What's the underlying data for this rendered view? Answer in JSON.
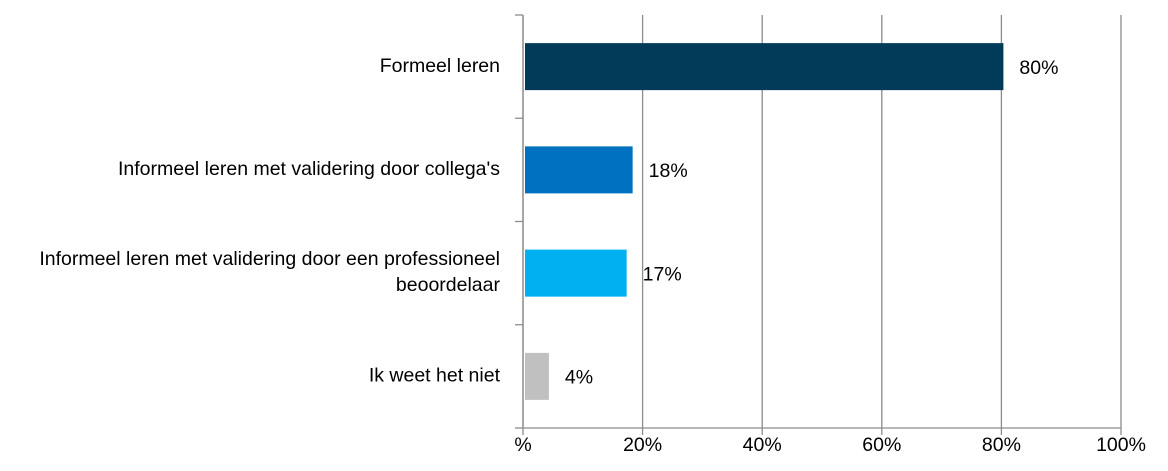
{
  "chart_data": {
    "type": "barh",
    "categories": [
      "Formeel leren",
      "Informeel leren met validering door collega's",
      "Informeel leren met validering door een professioneel beoordelaar",
      "Ik weet het niet"
    ],
    "values": [
      80,
      18,
      17,
      4
    ],
    "value_labels": [
      "80%",
      "18%",
      "17%",
      "4%"
    ],
    "colors": [
      "#023b5a",
      "#0070c0",
      "#00b0f0",
      "#c0c0c0"
    ],
    "xlim": [
      0,
      100
    ],
    "xticks": [
      {
        "value": 0,
        "label": "%"
      },
      {
        "value": 20,
        "label": "20%"
      },
      {
        "value": 40,
        "label": "40%"
      },
      {
        "value": 60,
        "label": "60%"
      },
      {
        "value": 80,
        "label": "80%"
      },
      {
        "value": 100,
        "label": "100%"
      }
    ],
    "grid": true
  }
}
